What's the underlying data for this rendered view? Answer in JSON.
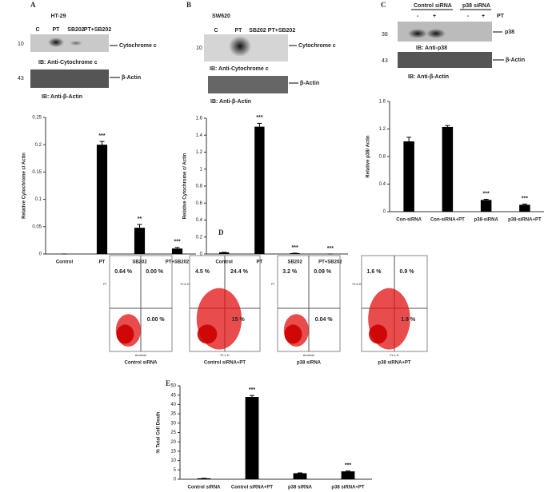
{
  "blots": [
    {
      "panel": "A",
      "cell_line": "HT-29",
      "lanes": [
        "C",
        "PT",
        "SB202",
        "PT+SB202"
      ],
      "target_mw": "10",
      "target": "Cytochrome c",
      "target_ib": "IB: Anti-Cytochrome c",
      "loading_mw": "43",
      "loading": "β-Actin",
      "loading_ib": "IB: Anti-β-Actin"
    },
    {
      "panel": "B",
      "cell_line": "SW620",
      "lanes": [
        "C",
        "PT",
        "SB202",
        "PT+SB202"
      ],
      "target_mw": "10",
      "target": "Cytochrome c",
      "target_ib": "IB: Anti-Cytochrome c",
      "loading": "β-Actin",
      "loading_ib": "IB: Anti-β-Actin"
    },
    {
      "panel": "C",
      "groups": [
        "Control siRNA",
        "p38 siRNA"
      ],
      "lanes": [
        "-",
        "+",
        "-",
        "+"
      ],
      "treatment": "PT",
      "target_mw": "38",
      "target": "p38",
      "target_ib": "IB: Anti-p38",
      "loading_mw": "43",
      "loading": "β-Actin",
      "loading_ib": "IB: Anti-β-Actin"
    }
  ],
  "flow": {
    "panel": "D",
    "plots": [
      {
        "caption": "Control siRNA",
        "upper_left": "0.64 %",
        "upper_right": "0.00 %",
        "lower_right": "0.00 %",
        "x_label": "Annexin",
        "y_label": "PI"
      },
      {
        "caption": "Control siRNA+PT",
        "upper_left": "4.5 %",
        "upper_right": "24.4 %",
        "lower_right": "15 %",
        "x_label": "FL1-H",
        "y_label": "FL3-H"
      },
      {
        "caption": "p38 siRNA",
        "upper_left": "3.2 %",
        "upper_right": "0.09 %",
        "lower_right": "0.04 %",
        "x_label": "Annexin",
        "y_label": "PI"
      },
      {
        "caption": "p38 siRNA+PT",
        "upper_left": "1.6 %",
        "upper_right": "0.9 %",
        "lower_right": "1.9 %",
        "x_label": "FL1-H",
        "y_label": "FL3-H"
      }
    ]
  },
  "chart_data": [
    {
      "type": "bar",
      "ylabel": "Relative Cytochrome c/ Actin",
      "categories": [
        "Control",
        "PT",
        "SB202",
        "PT+SB202"
      ],
      "values": [
        0,
        0.2,
        0.048,
        0.01
      ],
      "errors": [
        0,
        0.006,
        0.006,
        0.002
      ],
      "significance": [
        null,
        "***",
        "**",
        "***"
      ],
      "color": "#000000",
      "ylim": [
        0,
        0.25
      ],
      "yticks": [
        0,
        0.05,
        0.1,
        0.15,
        0.2,
        0.25
      ]
    },
    {
      "type": "bar",
      "ylabel": "Relative Cytochrome c/ Actin",
      "categories": [
        "Control",
        "PT",
        "SB202",
        "PT+SB202"
      ],
      "values": [
        0.02,
        1.5,
        0.01,
        0
      ],
      "errors": [
        0,
        0.04,
        0,
        0
      ],
      "significance": [
        null,
        "***",
        "***",
        "***"
      ],
      "color": "#000000",
      "ylim": [
        0,
        1.6
      ],
      "yticks": [
        0,
        0.2,
        0.4,
        0.6,
        0.8,
        1,
        1.2,
        1.4,
        1.6
      ]
    },
    {
      "type": "bar",
      "ylabel": "Relative p38/ Actin",
      "categories": [
        "Con-siRNA",
        "Con-siRNA+PT",
        "p38-siRNA",
        "p38-siRNA+PT"
      ],
      "values": [
        1.02,
        1.23,
        0.17,
        0.1
      ],
      "errors": [
        0.06,
        0.02,
        0.01,
        0.01
      ],
      "significance": [
        null,
        null,
        "***",
        "***"
      ],
      "color": "#000000",
      "ylim": [
        0,
        1.6
      ],
      "yticks": [
        0,
        0.4,
        0.8,
        1.2,
        1.6
      ]
    },
    {
      "type": "bar",
      "panel": "E",
      "ylabel": "% Total Cell Death",
      "categories": [
        "Control siRNA",
        "Control siRNA+PT",
        "p38 siRNA",
        "p38 siRNA+PT"
      ],
      "values": [
        0.5,
        44,
        3.2,
        4.2
      ],
      "errors": [
        0,
        0.8,
        0.2,
        0.2
      ],
      "significance": [
        null,
        "***",
        null,
        "***"
      ],
      "color": "#000000",
      "ylim": [
        0,
        50
      ],
      "yticks": [
        0,
        5,
        10,
        15,
        20,
        25,
        30,
        35,
        40,
        45,
        50
      ]
    }
  ]
}
